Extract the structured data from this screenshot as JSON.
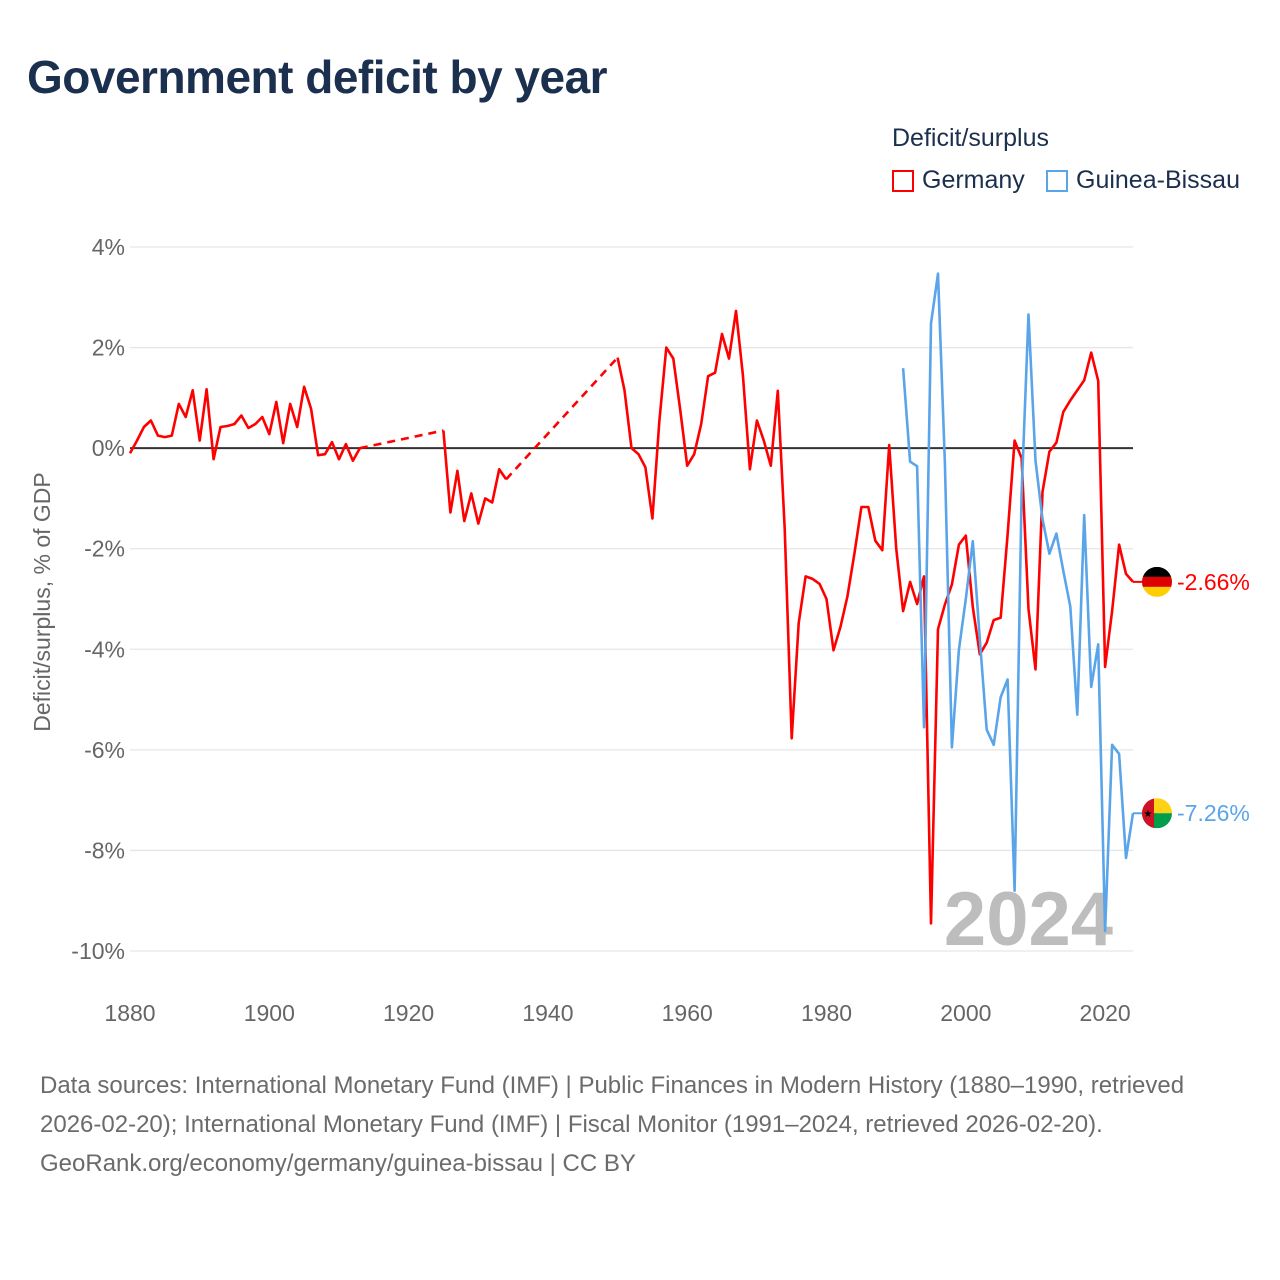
{
  "title": "Government deficit by year",
  "legend": {
    "title": "Deficit/surplus",
    "items": [
      {
        "label": "Germany",
        "color": "#ff0000"
      },
      {
        "label": "Guinea-Bissau",
        "color": "#5aa5ea"
      }
    ]
  },
  "year_watermark": "2024",
  "footer": {
    "sources": "Data sources: International Monetary Fund (IMF) | Public Finances in Modern History (1880–1990, retrieved 2026-02-20); International Monetary Fund (IMF) | Fiscal Monitor (1991–2024, retrieved 2026-02-20).",
    "credit": "GeoRank.org/economy/germany/guinea-bissau | CC BY"
  },
  "chart_data": {
    "type": "line",
    "title": "Government deficit by year",
    "xlabel": "",
    "ylabel": "Deficit/surplus, % of GDP",
    "xlim": [
      1880,
      2024
    ],
    "ylim": [
      -10,
      4
    ],
    "x_ticks": [
      1880,
      1900,
      1920,
      1940,
      1960,
      1980,
      2000,
      2020
    ],
    "x_tick_labels": [
      "1880",
      "1900",
      "1920",
      "1940",
      "1960",
      "1980",
      "2000",
      "2020"
    ],
    "y_ticks": [
      4,
      2,
      0,
      -2,
      -4,
      -6,
      -8,
      -10
    ],
    "y_tick_labels": [
      "4%",
      "2%",
      "0%",
      "-2%",
      "-4%",
      "-6%",
      "-8%",
      "-10%"
    ],
    "grid": true,
    "legend_position": "top-right",
    "series": [
      {
        "name": "Germany",
        "color": "#ff0000",
        "end_label": "-2.66%",
        "points": [
          [
            1880,
            -0.1
          ],
          [
            1881,
            0.15
          ],
          [
            1882,
            0.42
          ],
          [
            1883,
            0.55
          ],
          [
            1884,
            0.25
          ],
          [
            1885,
            0.22
          ],
          [
            1886,
            0.25
          ],
          [
            1887,
            0.88
          ],
          [
            1888,
            0.62
          ],
          [
            1889,
            1.15
          ],
          [
            1890,
            0.15
          ],
          [
            1891,
            1.17
          ],
          [
            1892,
            -0.22
          ],
          [
            1893,
            0.42
          ],
          [
            1894,
            0.44
          ],
          [
            1895,
            0.48
          ],
          [
            1896,
            0.65
          ],
          [
            1897,
            0.4
          ],
          [
            1898,
            0.48
          ],
          [
            1899,
            0.62
          ],
          [
            1900,
            0.28
          ],
          [
            1901,
            0.92
          ],
          [
            1902,
            0.1
          ],
          [
            1903,
            0.88
          ],
          [
            1904,
            0.42
          ],
          [
            1905,
            1.22
          ],
          [
            1906,
            0.78
          ],
          [
            1907,
            -0.14
          ],
          [
            1908,
            -0.12
          ],
          [
            1909,
            0.12
          ],
          [
            1910,
            -0.22
          ],
          [
            1911,
            0.08
          ],
          [
            1912,
            -0.25
          ],
          [
            1913,
            0.0
          ],
          [
            1925,
            0.35
          ],
          [
            1926,
            -1.28
          ],
          [
            1927,
            -0.45
          ],
          [
            1928,
            -1.45
          ],
          [
            1929,
            -0.9
          ],
          [
            1930,
            -1.5
          ],
          [
            1931,
            -1.0
          ],
          [
            1932,
            -1.08
          ],
          [
            1933,
            -0.42
          ],
          [
            1934,
            -0.62
          ],
          [
            1950,
            1.8
          ],
          [
            1951,
            1.15
          ],
          [
            1952,
            0.0
          ],
          [
            1953,
            -0.12
          ],
          [
            1954,
            -0.38
          ],
          [
            1955,
            -1.4
          ],
          [
            1956,
            0.55
          ],
          [
            1957,
            2.0
          ],
          [
            1958,
            1.78
          ],
          [
            1959,
            0.75
          ],
          [
            1960,
            -0.35
          ],
          [
            1961,
            -0.12
          ],
          [
            1962,
            0.48
          ],
          [
            1963,
            1.43
          ],
          [
            1964,
            1.5
          ],
          [
            1965,
            2.27
          ],
          [
            1966,
            1.78
          ],
          [
            1967,
            2.73
          ],
          [
            1968,
            1.45
          ],
          [
            1969,
            -0.42
          ],
          [
            1970,
            0.55
          ],
          [
            1971,
            0.15
          ],
          [
            1972,
            -0.35
          ],
          [
            1973,
            1.14
          ],
          [
            1974,
            -1.6
          ],
          [
            1975,
            -5.77
          ],
          [
            1976,
            -3.48
          ],
          [
            1977,
            -2.55
          ],
          [
            1978,
            -2.6
          ],
          [
            1979,
            -2.7
          ],
          [
            1980,
            -3.0
          ],
          [
            1981,
            -4.02
          ],
          [
            1982,
            -3.55
          ],
          [
            1983,
            -2.95
          ],
          [
            1984,
            -2.1
          ],
          [
            1985,
            -1.17
          ],
          [
            1986,
            -1.17
          ],
          [
            1987,
            -1.84
          ],
          [
            1988,
            -2.03
          ],
          [
            1989,
            0.06
          ],
          [
            1990,
            -1.99
          ],
          [
            1991,
            -3.24
          ],
          [
            1992,
            -2.66
          ],
          [
            1993,
            -3.1
          ],
          [
            1994,
            -2.55
          ],
          [
            1995,
            -9.45
          ],
          [
            1996,
            -3.6
          ],
          [
            1997,
            -3.11
          ],
          [
            1998,
            -2.71
          ],
          [
            1999,
            -1.92
          ],
          [
            2000,
            -1.74
          ],
          [
            2001,
            -3.16
          ],
          [
            2002,
            -4.1
          ],
          [
            2003,
            -3.87
          ],
          [
            2004,
            -3.42
          ],
          [
            2005,
            -3.37
          ],
          [
            2006,
            -1.72
          ],
          [
            2007,
            0.15
          ],
          [
            2008,
            -0.2
          ],
          [
            2009,
            -3.2
          ],
          [
            2010,
            -4.4
          ],
          [
            2011,
            -0.87
          ],
          [
            2012,
            -0.07
          ],
          [
            2013,
            0.11
          ],
          [
            2014,
            0.72
          ],
          [
            2015,
            0.95
          ],
          [
            2016,
            1.15
          ],
          [
            2017,
            1.35
          ],
          [
            2018,
            1.9
          ],
          [
            2019,
            1.34
          ],
          [
            2020,
            -4.35
          ],
          [
            2021,
            -3.24
          ],
          [
            2022,
            -1.92
          ],
          [
            2023,
            -2.5
          ],
          [
            2024,
            -2.66
          ]
        ]
      },
      {
        "name": "Guinea-Bissau",
        "color": "#5aa5ea",
        "end_label": "-7.26%",
        "points": [
          [
            1991,
            1.59
          ],
          [
            1992,
            -0.27
          ],
          [
            1993,
            -0.36
          ],
          [
            1994,
            -5.55
          ],
          [
            1995,
            2.48
          ],
          [
            1996,
            3.47
          ],
          [
            1997,
            -0.3
          ],
          [
            1998,
            -5.95
          ],
          [
            1999,
            -4.01
          ],
          [
            2000,
            -3.0
          ],
          [
            2001,
            -1.85
          ],
          [
            2002,
            -3.8
          ],
          [
            2003,
            -5.6
          ],
          [
            2004,
            -5.9
          ],
          [
            2005,
            -4.95
          ],
          [
            2006,
            -4.6
          ],
          [
            2007,
            -8.8
          ],
          [
            2008,
            -0.9
          ],
          [
            2009,
            2.66
          ],
          [
            2010,
            -0.25
          ],
          [
            2011,
            -1.41
          ],
          [
            2012,
            -2.1
          ],
          [
            2013,
            -1.7
          ],
          [
            2014,
            -2.44
          ],
          [
            2015,
            -3.15
          ],
          [
            2016,
            -5.3
          ],
          [
            2017,
            -1.33
          ],
          [
            2018,
            -4.75
          ],
          [
            2019,
            -3.9
          ],
          [
            2020,
            -9.6
          ],
          [
            2021,
            -5.9
          ],
          [
            2022,
            -6.08
          ],
          [
            2023,
            -8.15
          ],
          [
            2024,
            -7.26
          ]
        ]
      }
    ]
  }
}
